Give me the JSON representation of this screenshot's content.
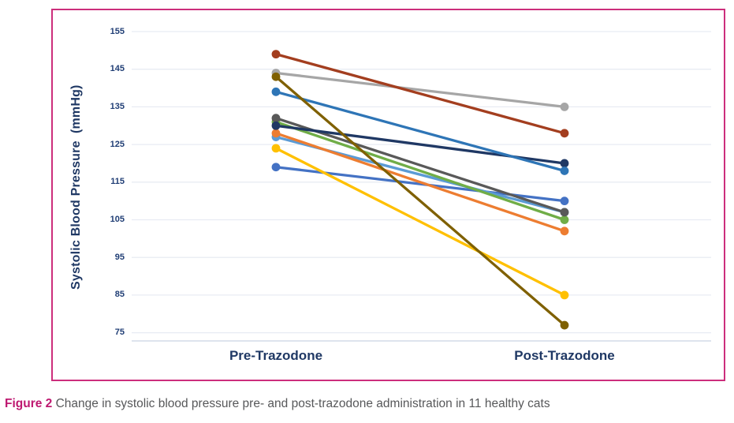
{
  "caption": {
    "label": "Figure 2",
    "text": "Change in systolic blood pressure pre- and post-trazodone administration in 11 healthy cats"
  },
  "colors": {
    "frame_border": "#CC2E7C",
    "caption_label": "#BE1870",
    "caption_text": "#57585A",
    "axis_text": "#1F3864",
    "tick_text": "#203E75",
    "gridline": "#E8ECF3",
    "axis_line": "#C9D3E2"
  },
  "chart_data": {
    "type": "line",
    "title": "",
    "y_axis_title": "Systolic Blood Pressure  (mmHg)",
    "x_categories": [
      "Pre-Trazodone",
      "Post-Trazodone"
    ],
    "y_ticks": [
      155,
      145,
      135,
      125,
      115,
      105,
      95,
      85,
      75
    ],
    "ylim": [
      75,
      155
    ],
    "grid": true,
    "legend": false,
    "series": [
      {
        "name": "dark-red",
        "color": "#A33E1F",
        "values": [
          149,
          128
        ]
      },
      {
        "name": "gray",
        "color": "#A6A6A6",
        "values": [
          144,
          135
        ]
      },
      {
        "name": "olive",
        "color": "#7F6000",
        "values": [
          143,
          77
        ]
      },
      {
        "name": "steel-blue",
        "color": "#2E75B6",
        "values": [
          139,
          118
        ]
      },
      {
        "name": "dark-gray",
        "color": "#595959",
        "values": [
          132,
          107
        ]
      },
      {
        "name": "green",
        "color": "#70AD47",
        "values": [
          131,
          105
        ]
      },
      {
        "name": "navy",
        "color": "#1F3864",
        "values": [
          130,
          120
        ]
      },
      {
        "name": "orange",
        "color": "#ED7D31",
        "values": [
          128,
          102
        ]
      },
      {
        "name": "light-blue",
        "color": "#5B9BD5",
        "values": [
          127,
          107
        ]
      },
      {
        "name": "yellow",
        "color": "#FFC000",
        "values": [
          124,
          85
        ]
      },
      {
        "name": "royal-blue",
        "color": "#4472C4",
        "values": [
          119,
          110
        ]
      }
    ],
    "draw_order": [
      10,
      8,
      5,
      7,
      4,
      6,
      3,
      1,
      0,
      9,
      2
    ]
  }
}
